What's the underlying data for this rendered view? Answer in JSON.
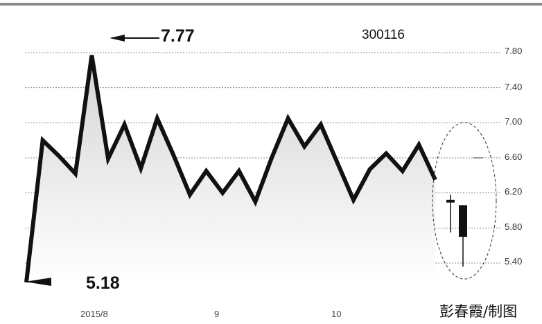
{
  "chart_data": {
    "type": "line",
    "title": "300116",
    "x": [
      0,
      1,
      2,
      3,
      4,
      5,
      6,
      7,
      8,
      9,
      10,
      11,
      12,
      13,
      14,
      15,
      16,
      17,
      18,
      19,
      20,
      21,
      22,
      23,
      24,
      25
    ],
    "values": [
      5.18,
      6.8,
      6.62,
      6.42,
      7.77,
      6.59,
      6.98,
      6.48,
      7.05,
      6.63,
      6.18,
      6.45,
      6.2,
      6.45,
      6.1,
      6.6,
      7.05,
      6.73,
      6.98,
      6.55,
      6.12,
      6.47,
      6.65,
      6.45,
      6.75,
      6.35
    ],
    "candles": [
      {
        "open": 6.09,
        "close": 6.12,
        "high": 6.18,
        "low": 5.75
      },
      {
        "open": 6.06,
        "close": 5.7,
        "high": 6.06,
        "low": 5.36
      }
    ],
    "ylim": [
      5.18,
      7.86
    ],
    "y_ticks": [
      "7.80",
      "7.40",
      "7.00",
      "6.60",
      "6.20",
      "5.80",
      "5.40"
    ],
    "x_ticks": [
      "2015/8",
      "9",
      "10"
    ],
    "grid": true,
    "annotations": {
      "high": "7.77",
      "low": "5.18"
    },
    "credit": "彭春霞/制图",
    "colors": {
      "line": "#111111",
      "fill": "#dedede",
      "grid": "#888888",
      "top_bar": "#8a8a8a"
    }
  }
}
